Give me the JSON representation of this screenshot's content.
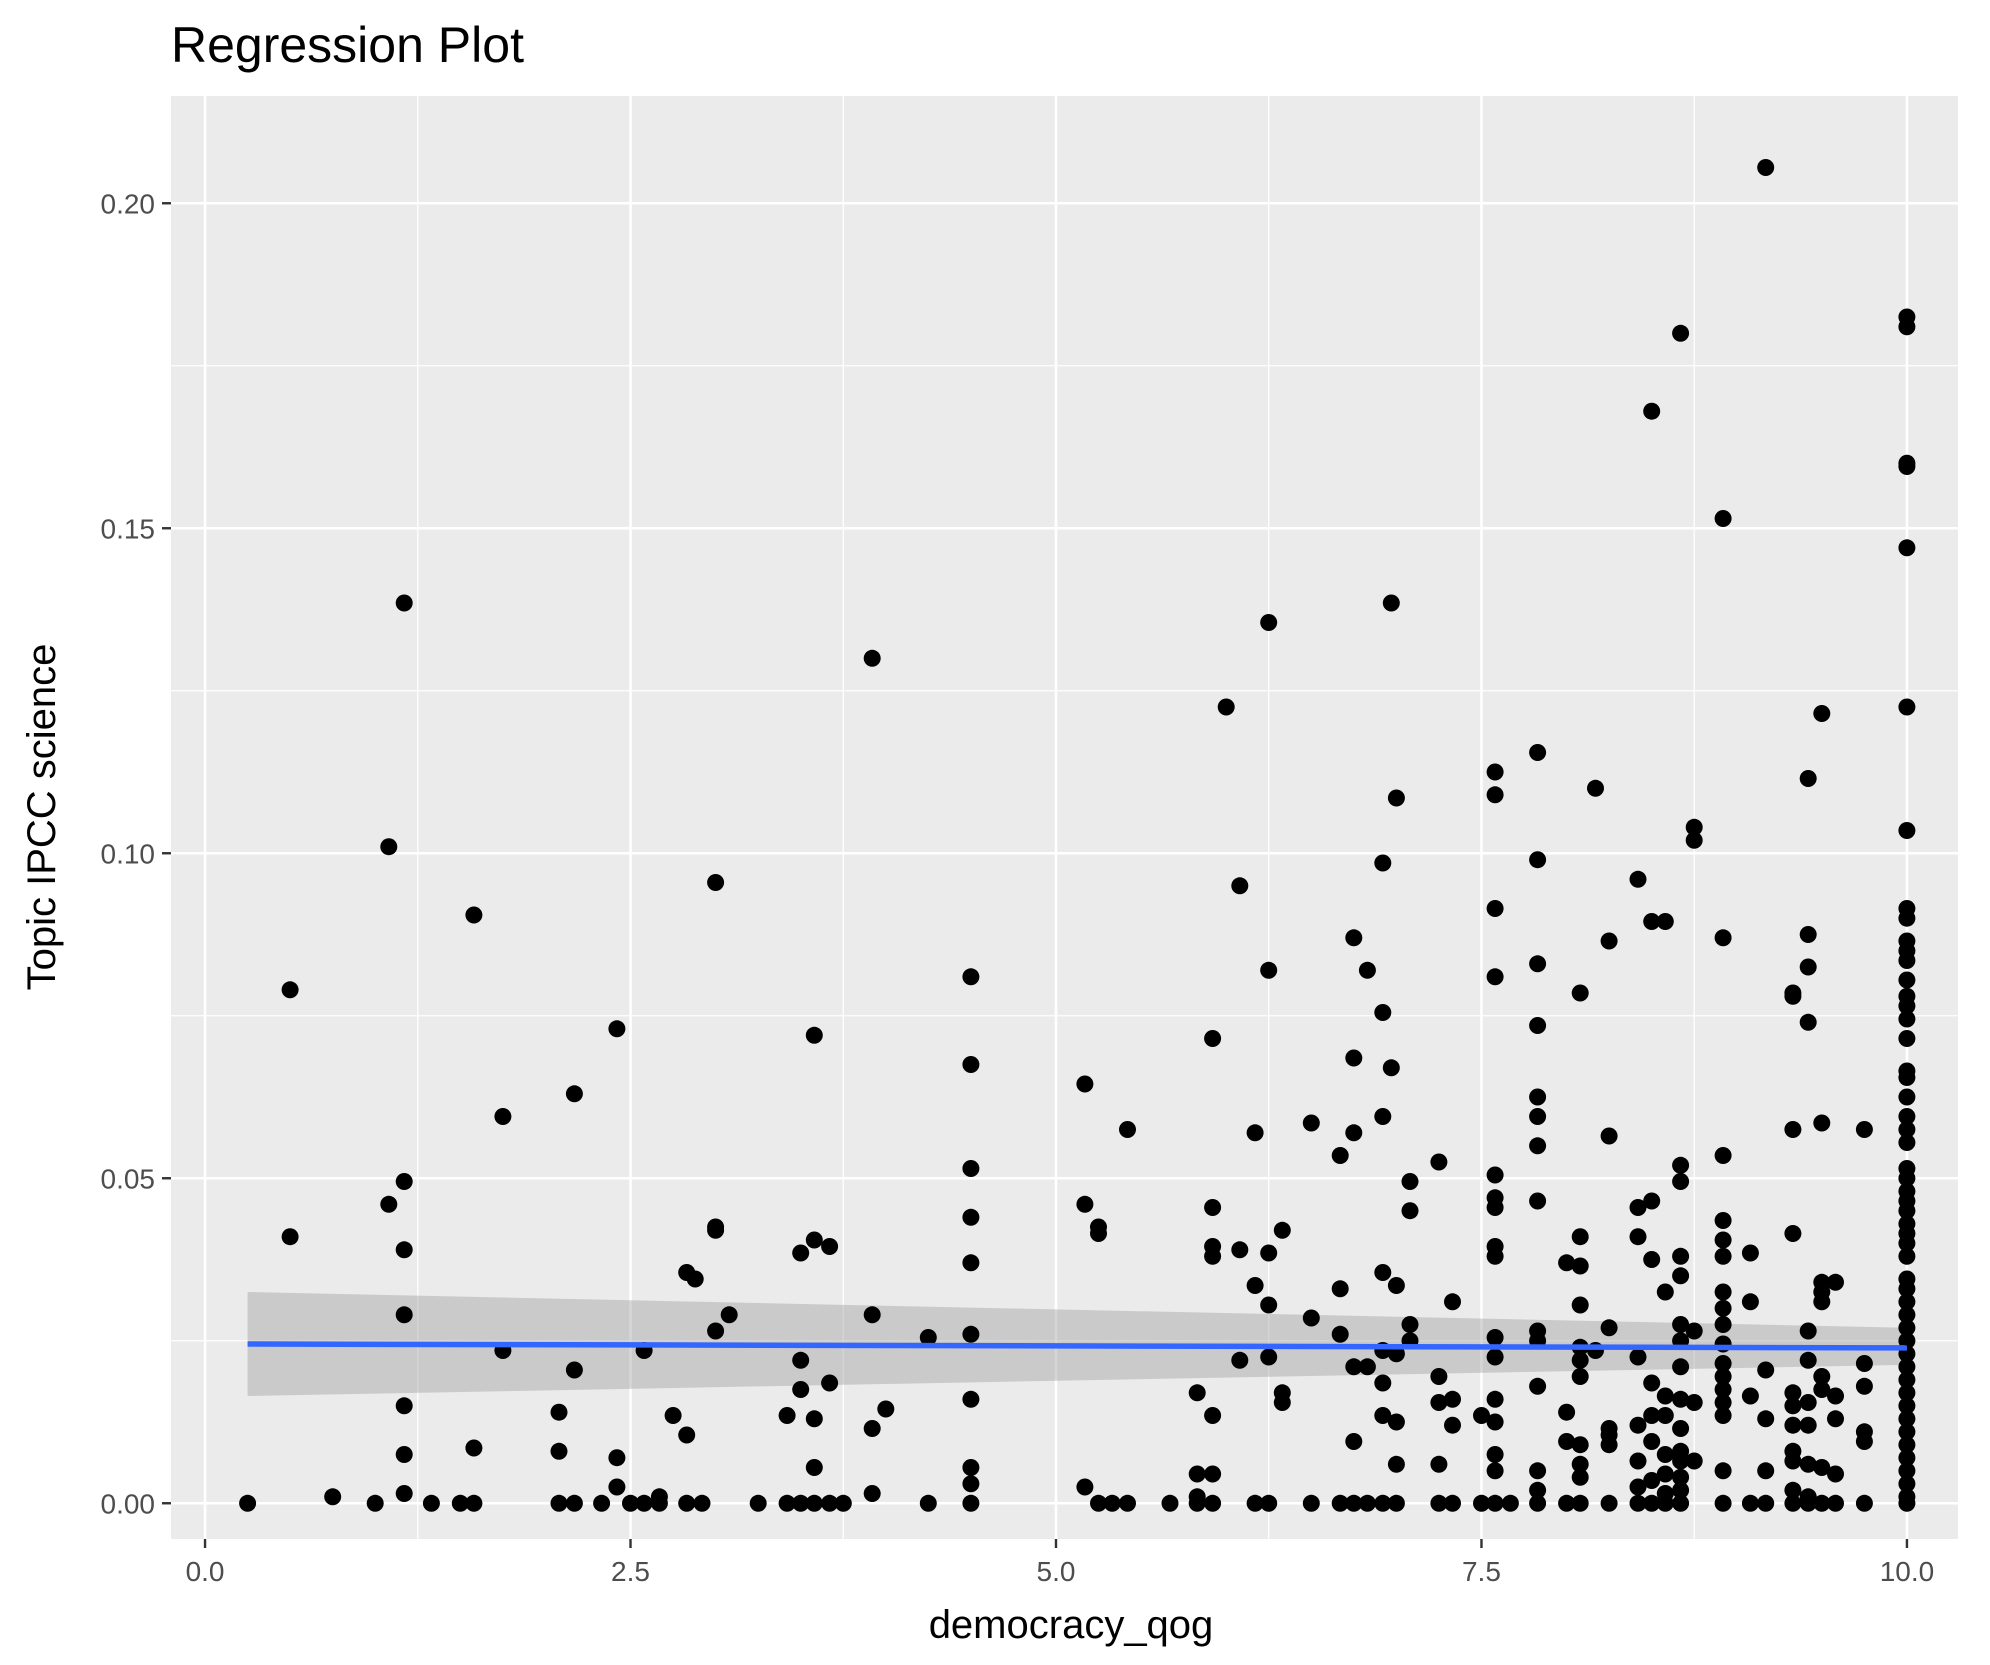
{
  "chart_data": {
    "type": "scatter",
    "title": "Regression Plot",
    "xlabel": "democracy_qog",
    "ylabel": "Topic IPCC science",
    "xlim": [
      -0.2,
      10.3
    ],
    "ylim": [
      -0.0055,
      0.2165
    ],
    "x_ticks": [
      0.0,
      2.5,
      5.0,
      7.5,
      10.0
    ],
    "x_tick_labels": [
      "0.0",
      "2.5",
      "5.0",
      "7.5",
      "10.0"
    ],
    "y_ticks": [
      0.0,
      0.05,
      0.1,
      0.15,
      0.2
    ],
    "y_tick_labels": [
      "0.00",
      "0.05",
      "0.10",
      "0.15",
      "0.20"
    ],
    "grid": true,
    "colors": {
      "panel": "#ebebeb",
      "grid": "#ffffff",
      "points": "#000000",
      "line": "#3366ff",
      "ribbon": "#999999"
    },
    "regression": {
      "x": [
        0.25,
        10.0
      ],
      "y": [
        0.0245,
        0.0239
      ],
      "ci_lower": [
        0.0165,
        0.0213
      ],
      "ci_upper": [
        0.0325,
        0.027
      ]
    },
    "points": [
      [
        0.25,
        0.0
      ],
      [
        0.5,
        0.079
      ],
      [
        0.5,
        0.041
      ],
      [
        0.75,
        0.001
      ],
      [
        1.0,
        0.0
      ],
      [
        1.08,
        0.101
      ],
      [
        1.08,
        0.046
      ],
      [
        1.17,
        0.1385
      ],
      [
        1.17,
        0.0495
      ],
      [
        1.17,
        0.039
      ],
      [
        1.17,
        0.029
      ],
      [
        1.17,
        0.015
      ],
      [
        1.17,
        0.0075
      ],
      [
        1.17,
        0.0015
      ],
      [
        1.33,
        0.0
      ],
      [
        1.5,
        0.0
      ],
      [
        1.58,
        0.0
      ],
      [
        1.58,
        0.0905
      ],
      [
        1.58,
        0.0085
      ],
      [
        1.75,
        0.0595
      ],
      [
        1.75,
        0.0235
      ],
      [
        2.08,
        0.014
      ],
      [
        2.08,
        0.008
      ],
      [
        2.08,
        0.0
      ],
      [
        2.17,
        0.0
      ],
      [
        2.17,
        0.063
      ],
      [
        2.17,
        0.0205
      ],
      [
        2.33,
        0.0
      ],
      [
        2.42,
        0.073
      ],
      [
        2.42,
        0.007
      ],
      [
        2.42,
        0.0025
      ],
      [
        2.5,
        0.0
      ],
      [
        2.58,
        0.0
      ],
      [
        2.58,
        0.0235
      ],
      [
        2.67,
        0.001
      ],
      [
        2.67,
        0.0
      ],
      [
        2.75,
        0.0135
      ],
      [
        2.83,
        0.0355
      ],
      [
        2.83,
        0.0105
      ],
      [
        2.83,
        0.0
      ],
      [
        2.88,
        0.0345
      ],
      [
        2.92,
        0.0
      ],
      [
        3.0,
        0.0955
      ],
      [
        3.0,
        0.0425
      ],
      [
        3.0,
        0.042
      ],
      [
        3.0,
        0.0265
      ],
      [
        3.08,
        0.029
      ],
      [
        3.25,
        0.0
      ],
      [
        3.42,
        0.0
      ],
      [
        3.42,
        0.0135
      ],
      [
        3.5,
        0.0385
      ],
      [
        3.5,
        0.022
      ],
      [
        3.5,
        0.0175
      ],
      [
        3.5,
        0.0
      ],
      [
        3.58,
        0.072
      ],
      [
        3.58,
        0.0405
      ],
      [
        3.58,
        0.013
      ],
      [
        3.58,
        0.0055
      ],
      [
        3.58,
        0.0
      ],
      [
        3.67,
        0.0395
      ],
      [
        3.67,
        0.0185
      ],
      [
        3.67,
        0.0
      ],
      [
        3.75,
        0.0
      ],
      [
        3.92,
        0.13
      ],
      [
        3.92,
        0.029
      ],
      [
        3.92,
        0.0115
      ],
      [
        3.92,
        0.0015
      ],
      [
        4.0,
        0.0145
      ],
      [
        4.25,
        0.0255
      ],
      [
        4.25,
        0.0
      ],
      [
        4.5,
        0.081
      ],
      [
        4.5,
        0.0675
      ],
      [
        4.5,
        0.0515
      ],
      [
        4.5,
        0.044
      ],
      [
        4.5,
        0.037
      ],
      [
        4.5,
        0.026
      ],
      [
        4.5,
        0.016
      ],
      [
        4.5,
        0.0055
      ],
      [
        4.5,
        0.003
      ],
      [
        4.5,
        0.0
      ],
      [
        5.17,
        0.0645
      ],
      [
        5.17,
        0.046
      ],
      [
        5.17,
        0.0025
      ],
      [
        5.25,
        0.0425
      ],
      [
        5.25,
        0.0415
      ],
      [
        5.25,
        0.0
      ],
      [
        5.33,
        0.0
      ],
      [
        5.42,
        0.0575
      ],
      [
        5.42,
        0.0
      ],
      [
        5.67,
        0.0
      ],
      [
        5.83,
        0.017
      ],
      [
        5.83,
        0.0045
      ],
      [
        5.83,
        0.001
      ],
      [
        5.83,
        0.0
      ],
      [
        5.92,
        0.0715
      ],
      [
        5.92,
        0.0455
      ],
      [
        5.92,
        0.0395
      ],
      [
        5.92,
        0.038
      ],
      [
        5.92,
        0.0135
      ],
      [
        5.92,
        0.0045
      ],
      [
        5.92,
        0.0
      ],
      [
        6.0,
        0.1225
      ],
      [
        6.08,
        0.095
      ],
      [
        6.08,
        0.039
      ],
      [
        6.08,
        0.022
      ],
      [
        6.17,
        0.057
      ],
      [
        6.17,
        0.0335
      ],
      [
        6.17,
        0.0
      ],
      [
        6.25,
        0.1355
      ],
      [
        6.25,
        0.082
      ],
      [
        6.25,
        0.0385
      ],
      [
        6.25,
        0.0305
      ],
      [
        6.25,
        0.0225
      ],
      [
        6.25,
        0.0
      ],
      [
        6.33,
        0.042
      ],
      [
        6.33,
        0.017
      ],
      [
        6.33,
        0.0155
      ],
      [
        6.5,
        0.0585
      ],
      [
        6.5,
        0.0285
      ],
      [
        6.5,
        0.0
      ],
      [
        6.67,
        0.0535
      ],
      [
        6.67,
        0.033
      ],
      [
        6.67,
        0.026
      ],
      [
        6.67,
        0.0
      ],
      [
        6.75,
        0.087
      ],
      [
        6.75,
        0.0685
      ],
      [
        6.75,
        0.057
      ],
      [
        6.75,
        0.021
      ],
      [
        6.75,
        0.0095
      ],
      [
        6.75,
        0.0
      ],
      [
        6.83,
        0.082
      ],
      [
        6.83,
        0.021
      ],
      [
        6.83,
        0.0
      ],
      [
        6.92,
        0.0985
      ],
      [
        6.92,
        0.0755
      ],
      [
        6.92,
        0.0595
      ],
      [
        6.92,
        0.0355
      ],
      [
        6.92,
        0.0235
      ],
      [
        6.92,
        0.0185
      ],
      [
        6.92,
        0.0135
      ],
      [
        6.92,
        0.0
      ],
      [
        6.97,
        0.1385
      ],
      [
        6.97,
        0.067
      ],
      [
        7.0,
        0.1085
      ],
      [
        7.0,
        0.0335
      ],
      [
        7.0,
        0.023
      ],
      [
        7.0,
        0.0125
      ],
      [
        7.0,
        0.006
      ],
      [
        7.0,
        0.0
      ],
      [
        7.08,
        0.0495
      ],
      [
        7.08,
        0.045
      ],
      [
        7.08,
        0.0275
      ],
      [
        7.08,
        0.025
      ],
      [
        7.25,
        0.0525
      ],
      [
        7.25,
        0.0195
      ],
      [
        7.25,
        0.0155
      ],
      [
        7.25,
        0.006
      ],
      [
        7.25,
        0.0
      ],
      [
        7.33,
        0.031
      ],
      [
        7.33,
        0.016
      ],
      [
        7.33,
        0.012
      ],
      [
        7.33,
        0.0
      ],
      [
        7.5,
        0.0135
      ],
      [
        7.5,
        0.0
      ],
      [
        7.58,
        0.1125
      ],
      [
        7.58,
        0.109
      ],
      [
        7.58,
        0.0915
      ],
      [
        7.58,
        0.081
      ],
      [
        7.58,
        0.0505
      ],
      [
        7.58,
        0.047
      ],
      [
        7.58,
        0.0455
      ],
      [
        7.58,
        0.0395
      ],
      [
        7.58,
        0.038
      ],
      [
        7.58,
        0.0255
      ],
      [
        7.58,
        0.0225
      ],
      [
        7.58,
        0.016
      ],
      [
        7.58,
        0.0125
      ],
      [
        7.58,
        0.0075
      ],
      [
        7.58,
        0.005
      ],
      [
        7.58,
        0.0
      ],
      [
        7.67,
        0.0
      ],
      [
        7.83,
        0.1155
      ],
      [
        7.83,
        0.099
      ],
      [
        7.83,
        0.083
      ],
      [
        7.83,
        0.0735
      ],
      [
        7.83,
        0.0625
      ],
      [
        7.83,
        0.0595
      ],
      [
        7.83,
        0.055
      ],
      [
        7.83,
        0.0465
      ],
      [
        7.83,
        0.0265
      ],
      [
        7.83,
        0.025
      ],
      [
        7.83,
        0.018
      ],
      [
        7.83,
        0.005
      ],
      [
        7.83,
        0.002
      ],
      [
        7.83,
        0.0
      ],
      [
        8.0,
        0.037
      ],
      [
        8.0,
        0.014
      ],
      [
        8.0,
        0.0095
      ],
      [
        8.0,
        0.0
      ],
      [
        8.08,
        0.0785
      ],
      [
        8.08,
        0.041
      ],
      [
        8.08,
        0.0365
      ],
      [
        8.08,
        0.0305
      ],
      [
        8.08,
        0.024
      ],
      [
        8.08,
        0.022
      ],
      [
        8.08,
        0.0195
      ],
      [
        8.08,
        0.009
      ],
      [
        8.08,
        0.006
      ],
      [
        8.08,
        0.004
      ],
      [
        8.08,
        0.0
      ],
      [
        8.17,
        0.11
      ],
      [
        8.17,
        0.0235
      ],
      [
        8.25,
        0.0865
      ],
      [
        8.25,
        0.0565
      ],
      [
        8.25,
        0.027
      ],
      [
        8.25,
        0.0115
      ],
      [
        8.25,
        0.0105
      ],
      [
        8.25,
        0.009
      ],
      [
        8.25,
        0.0
      ],
      [
        8.42,
        0.096
      ],
      [
        8.42,
        0.0455
      ],
      [
        8.42,
        0.041
      ],
      [
        8.42,
        0.0225
      ],
      [
        8.42,
        0.012
      ],
      [
        8.42,
        0.0065
      ],
      [
        8.42,
        0.0025
      ],
      [
        8.42,
        0.0
      ],
      [
        8.5,
        0.168
      ],
      [
        8.5,
        0.0895
      ],
      [
        8.5,
        0.0465
      ],
      [
        8.5,
        0.0375
      ],
      [
        8.5,
        0.0185
      ],
      [
        8.5,
        0.0135
      ],
      [
        8.5,
        0.0095
      ],
      [
        8.5,
        0.0035
      ],
      [
        8.5,
        0.0
      ],
      [
        8.58,
        0.0895
      ],
      [
        8.58,
        0.0325
      ],
      [
        8.58,
        0.0165
      ],
      [
        8.58,
        0.0135
      ],
      [
        8.58,
        0.0075
      ],
      [
        8.58,
        0.0045
      ],
      [
        8.58,
        0.0015
      ],
      [
        8.58,
        0.0
      ],
      [
        8.67,
        0.18
      ],
      [
        8.67,
        0.052
      ],
      [
        8.67,
        0.0495
      ],
      [
        8.67,
        0.038
      ],
      [
        8.67,
        0.035
      ],
      [
        8.67,
        0.0275
      ],
      [
        8.67,
        0.025
      ],
      [
        8.67,
        0.021
      ],
      [
        8.67,
        0.016
      ],
      [
        8.67,
        0.0115
      ],
      [
        8.67,
        0.008
      ],
      [
        8.67,
        0.0065
      ],
      [
        8.67,
        0.004
      ],
      [
        8.67,
        0.002
      ],
      [
        8.67,
        0.0
      ],
      [
        8.75,
        0.104
      ],
      [
        8.75,
        0.102
      ],
      [
        8.75,
        0.0265
      ],
      [
        8.75,
        0.0155
      ],
      [
        8.75,
        0.0065
      ],
      [
        8.92,
        0.1515
      ],
      [
        8.92,
        0.087
      ],
      [
        8.92,
        0.0535
      ],
      [
        8.92,
        0.0435
      ],
      [
        8.92,
        0.0405
      ],
      [
        8.92,
        0.038
      ],
      [
        8.92,
        0.0325
      ],
      [
        8.92,
        0.03
      ],
      [
        8.92,
        0.0275
      ],
      [
        8.92,
        0.0245
      ],
      [
        8.92,
        0.0215
      ],
      [
        8.92,
        0.0195
      ],
      [
        8.92,
        0.0175
      ],
      [
        8.92,
        0.0155
      ],
      [
        8.92,
        0.0135
      ],
      [
        8.92,
        0.005
      ],
      [
        8.92,
        0.0
      ],
      [
        9.08,
        0.0385
      ],
      [
        9.08,
        0.031
      ],
      [
        9.08,
        0.0165
      ],
      [
        9.08,
        0.0
      ],
      [
        9.17,
        0.2055
      ],
      [
        9.17,
        0.0205
      ],
      [
        9.17,
        0.013
      ],
      [
        9.17,
        0.005
      ],
      [
        9.17,
        0.0
      ],
      [
        9.33,
        0.0785
      ],
      [
        9.33,
        0.078
      ],
      [
        9.33,
        0.0575
      ],
      [
        9.33,
        0.0415
      ],
      [
        9.33,
        0.017
      ],
      [
        9.33,
        0.015
      ],
      [
        9.33,
        0.012
      ],
      [
        9.33,
        0.008
      ],
      [
        9.33,
        0.0065
      ],
      [
        9.33,
        0.002
      ],
      [
        9.33,
        0.0
      ],
      [
        9.42,
        0.1115
      ],
      [
        9.42,
        0.0875
      ],
      [
        9.42,
        0.0825
      ],
      [
        9.42,
        0.074
      ],
      [
        9.42,
        0.0265
      ],
      [
        9.42,
        0.022
      ],
      [
        9.42,
        0.0155
      ],
      [
        9.42,
        0.012
      ],
      [
        9.42,
        0.006
      ],
      [
        9.42,
        0.001
      ],
      [
        9.42,
        0.0
      ],
      [
        9.5,
        0.1215
      ],
      [
        9.5,
        0.0585
      ],
      [
        9.5,
        0.034
      ],
      [
        9.5,
        0.0325
      ],
      [
        9.5,
        0.031
      ],
      [
        9.5,
        0.0195
      ],
      [
        9.5,
        0.0175
      ],
      [
        9.5,
        0.0055
      ],
      [
        9.5,
        0.0
      ],
      [
        9.58,
        0.034
      ],
      [
        9.58,
        0.0165
      ],
      [
        9.58,
        0.013
      ],
      [
        9.58,
        0.0045
      ],
      [
        9.58,
        0.0
      ],
      [
        9.75,
        0.0575
      ],
      [
        9.75,
        0.0215
      ],
      [
        9.75,
        0.018
      ],
      [
        9.75,
        0.011
      ],
      [
        9.75,
        0.0095
      ],
      [
        9.75,
        0.0
      ],
      [
        10.0,
        0.1825
      ],
      [
        10.0,
        0.181
      ],
      [
        10.0,
        0.16
      ],
      [
        10.0,
        0.1595
      ],
      [
        10.0,
        0.147
      ],
      [
        10.0,
        0.1225
      ],
      [
        10.0,
        0.1035
      ],
      [
        10.0,
        0.0915
      ],
      [
        10.0,
        0.09
      ],
      [
        10.0,
        0.0865
      ],
      [
        10.0,
        0.085
      ],
      [
        10.0,
        0.0835
      ],
      [
        10.0,
        0.0805
      ],
      [
        10.0,
        0.078
      ],
      [
        10.0,
        0.0765
      ],
      [
        10.0,
        0.0745
      ],
      [
        10.0,
        0.0715
      ],
      [
        10.0,
        0.0665
      ],
      [
        10.0,
        0.0655
      ],
      [
        10.0,
        0.0625
      ],
      [
        10.0,
        0.0595
      ],
      [
        10.0,
        0.0575
      ],
      [
        10.0,
        0.0555
      ],
      [
        10.0,
        0.0515
      ],
      [
        10.0,
        0.05
      ],
      [
        10.0,
        0.048
      ],
      [
        10.0,
        0.0465
      ],
      [
        10.0,
        0.045
      ],
      [
        10.0,
        0.043
      ],
      [
        10.0,
        0.0415
      ],
      [
        10.0,
        0.04
      ],
      [
        10.0,
        0.038
      ],
      [
        10.0,
        0.0345
      ],
      [
        10.0,
        0.033
      ],
      [
        10.0,
        0.031
      ],
      [
        10.0,
        0.029
      ],
      [
        10.0,
        0.027
      ],
      [
        10.0,
        0.025
      ],
      [
        10.0,
        0.023
      ],
      [
        10.0,
        0.021
      ],
      [
        10.0,
        0.019
      ],
      [
        10.0,
        0.017
      ],
      [
        10.0,
        0.015
      ],
      [
        10.0,
        0.013
      ],
      [
        10.0,
        0.011
      ],
      [
        10.0,
        0.009
      ],
      [
        10.0,
        0.007
      ],
      [
        10.0,
        0.005
      ],
      [
        10.0,
        0.003
      ],
      [
        10.0,
        0.001
      ],
      [
        10.0,
        0.0
      ]
    ]
  }
}
